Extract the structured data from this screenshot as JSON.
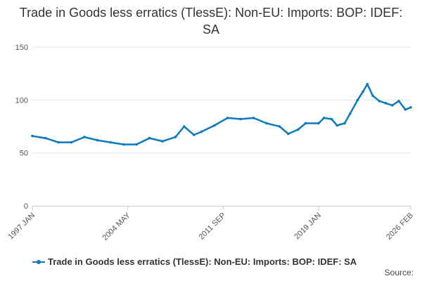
{
  "chart_data": {
    "type": "line",
    "title": "Trade in Goods less erratics (TlessE): Non-EU: Imports: BOP: IDEF: SA",
    "xlabel": "",
    "ylabel": "",
    "ylim": [
      0,
      150
    ],
    "yticks": [
      0,
      50,
      100,
      150
    ],
    "xticks": [
      "1997 JAN",
      "2004 MAY",
      "2011 SEP",
      "2019 JAN",
      "2026 FEB"
    ],
    "grid": true,
    "legend_position": "bottom",
    "series_color": "#0b7bbd",
    "series": [
      {
        "name": "Trade in Goods less erratics (TlessE): Non-EU: Imports: BOP: IDEF: SA",
        "x": [
          "1997-01",
          "1998-01",
          "1999-01",
          "2000-01",
          "2001-01",
          "2002-01",
          "2003-01",
          "2004-01",
          "2005-01",
          "2006-01",
          "2007-01",
          "2008-01",
          "2008-09",
          "2009-06",
          "2010-01",
          "2011-01",
          "2012-01",
          "2013-01",
          "2014-01",
          "2015-01",
          "2016-01",
          "2016-09",
          "2017-06",
          "2018-01",
          "2019-01",
          "2019-06",
          "2020-01",
          "2020-06",
          "2021-01",
          "2021-06",
          "2022-01",
          "2022-06",
          "2022-10",
          "2023-03",
          "2023-09",
          "2024-03",
          "2024-09",
          "2025-03",
          "2025-09",
          "2026-02"
        ],
        "values": [
          66,
          64,
          60,
          60,
          65,
          62,
          60,
          58,
          58,
          64,
          61,
          65,
          75,
          67,
          70,
          76,
          83,
          82,
          83,
          78,
          75,
          68,
          72,
          78,
          78,
          83,
          82,
          76,
          78,
          87,
          100,
          108,
          115,
          104,
          99,
          97,
          95,
          99,
          91,
          93
        ]
      }
    ]
  },
  "legend": {
    "label": "Trade in Goods less erratics (TlessE): Non-EU: Imports: BOP: IDEF: SA"
  },
  "source": {
    "label": "Source:"
  }
}
